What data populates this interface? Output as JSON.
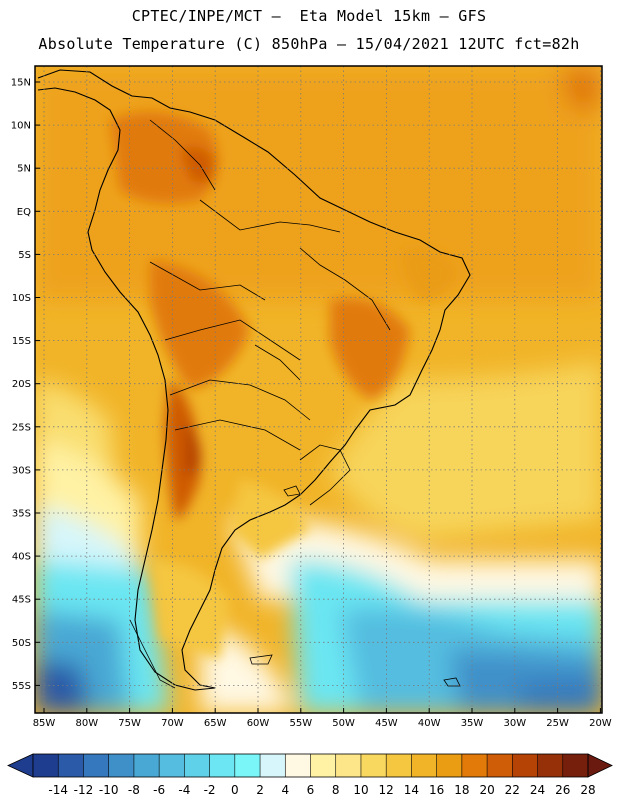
{
  "header": {
    "line1": "CPTEC/INPE/MCT –  Eta Model 15km – GFS",
    "line2": "Absolute Temperature (C) 850hPa – 15/04/2021 12UTC fct=82h"
  },
  "axes": {
    "lat_labels": [
      "15N",
      "10N",
      "5N",
      "EQ",
      "5S",
      "10S",
      "15S",
      "20S",
      "25S",
      "30S",
      "35S",
      "40S",
      "45S",
      "50S",
      "55S"
    ],
    "lon_labels": [
      "85W",
      "80W",
      "75W",
      "70W",
      "65W",
      "60W",
      "55W",
      "50W",
      "45W",
      "40W",
      "35W",
      "30W",
      "25W",
      "20W"
    ]
  },
  "colorbar": {
    "labels": [
      "-14",
      "-12",
      "-10",
      "-8",
      "-6",
      "-4",
      "-2",
      "0",
      "2",
      "4",
      "6",
      "8",
      "10",
      "12",
      "14",
      "16",
      "18",
      "20",
      "22",
      "24",
      "26",
      "28"
    ],
    "colors": [
      "#1f3d8f",
      "#2a5aa8",
      "#3578bd",
      "#3f90c9",
      "#4aa8d4",
      "#55bde0",
      "#5fd2ea",
      "#6be6f2",
      "#7af6f8",
      "#d6f6fb",
      "#fff8e3",
      "#fff2a4",
      "#fde68a",
      "#f9d860",
      "#f5c640",
      "#f1b428",
      "#ea9c12",
      "#e17a08",
      "#cf5c06",
      "#b54306",
      "#963008",
      "#761f0c"
    ],
    "under_color": "#1f3d8f",
    "over_color": "#6b1a10"
  }
}
